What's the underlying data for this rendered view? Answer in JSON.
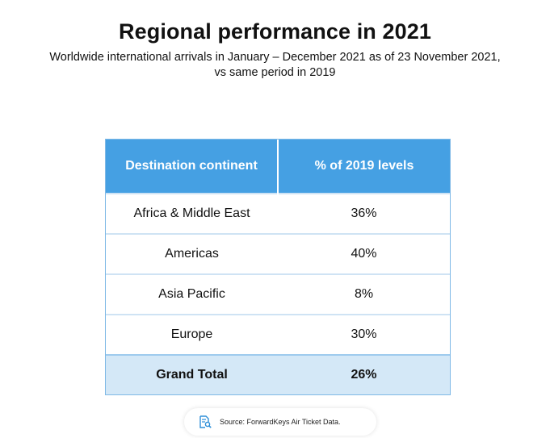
{
  "header": {
    "title": "Regional performance in 2021",
    "subtitle_line1": "Worldwide international arrivals in January – December 2021 as of 23 November 2021,",
    "subtitle_line2": "vs same period in 2019"
  },
  "chart_data": {
    "type": "table",
    "title": "Regional performance in 2021",
    "subtitle": "Worldwide international arrivals in January – December 2021 as of 23 November 2021, vs same period in 2019",
    "columns": [
      "Destination continent",
      "% of 2019 levels"
    ],
    "rows": [
      [
        "Africa & Middle East",
        "36%"
      ],
      [
        "Americas",
        "40%"
      ],
      [
        "Asia Pacific",
        "8%"
      ],
      [
        "Europe",
        "30%"
      ]
    ],
    "total": [
      "Grand Total",
      "26%"
    ]
  },
  "source": {
    "text": "Source: ForwardKeys Air Ticket Data.",
    "icon": "document-search-icon"
  },
  "colors": {
    "header_bg": "#45a0e3",
    "total_bg": "#d4e8f7",
    "icon_color": "#2f8fd8"
  }
}
